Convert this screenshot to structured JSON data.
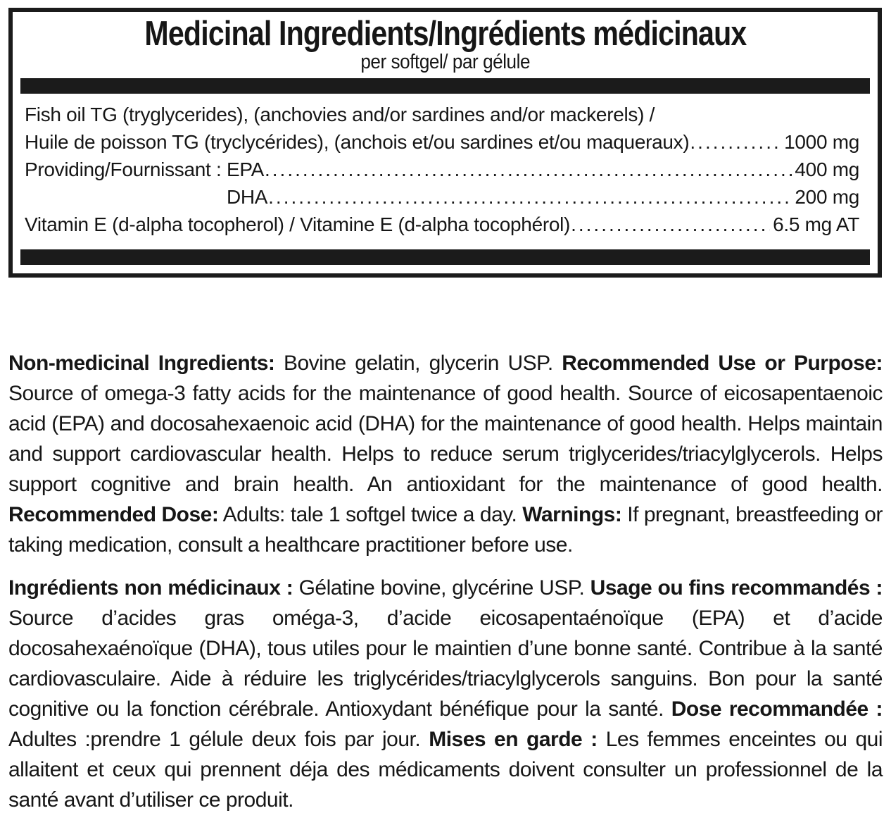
{
  "colors": {
    "ink": "#1b1b1b",
    "background": "#ffffff"
  },
  "panel": {
    "title": "Medicinal Ingredients/Ingrédients médicinaux",
    "subtitle": "per softgel/ par gélule",
    "rows": [
      {
        "text": "Fish oil TG (tryglycerides), (anchovies and/or sardines and/or mackerels) /"
      },
      {
        "text": "Huile de poisson TG (tryclycérides), (anchois et/ou sardines et/ou maqueraux)",
        "amount": "1000 mg"
      },
      {
        "prefix": "Providing/Fournissant : ",
        "text": "EPA",
        "amount": "400 mg"
      },
      {
        "text": "DHA",
        "amount": "200 mg"
      },
      {
        "text": "Vitamin E (d-alpha tocopherol) / Vitamine E (d-alpha tocophérol)",
        "amount": "6.5 mg AT"
      }
    ]
  },
  "paragraphs": {
    "english": {
      "heading_nonmedicinal": "Non-medicinal Ingredients:",
      "body1": " Bovine gelatin, glycerin USP. ",
      "heading_use": "Recommended Use or Purpose:",
      "body2": " Source of omega-3 fatty acids for the maintenance of good health. Source of eicosapentaenoic acid (EPA) and docosahexaenoic acid (DHA) for the maintenance of good health. Helps maintain and support cardiovascular health. Helps to reduce serum triglycerides/triacylglycerols. Helps support cognitive and brain health. An antioxidant for the maintenance of good health. ",
      "heading_dose": "Recommended Dose:",
      "body3": " Adults: tale 1 softgel twice a day. ",
      "heading_warnings": "Warnings:",
      "body4": " If pregnant, breastfeeding or taking medication, consult a healthcare practitioner before use."
    },
    "french": {
      "heading_nonmedicinal": "Ingrédients non médicinaux :",
      "body1": " Gélatine bovine, glycérine USP. ",
      "heading_use": "Usage ou fins recommandés :",
      "body2": " Source d’acides gras oméga-3, d’acide eicosapentaénoïque (EPA) et d’acide docosahexaénoïque (DHA), tous utiles pour le maintien d’une bonne santé. Contribue à la santé cardiovasculaire. Aide à réduire les triglycérides/triacylglycerols sanguins. Bon pour la santé cognitive ou la fonction cérébrale. Antioxydant bénéfique pour la santé. ",
      "heading_dose": "Dose recommandée :",
      "body3": " Adultes :prendre 1 gélule deux fois par jour. ",
      "heading_warnings": "Mises en garde :",
      "body4": " Les femmes enceintes ou qui allaitent et ceux qui prennent déja des médicaments doivent consulter un professionnel de la santé avant d’utiliser ce produit."
    }
  }
}
